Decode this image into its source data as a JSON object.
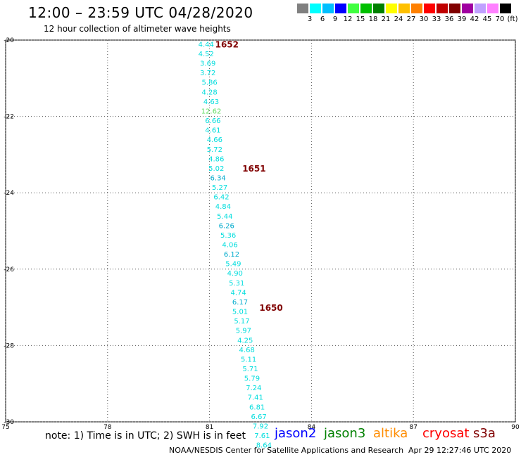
{
  "header": {
    "title": "12:00 – 23:59 UTC 04/28/2020",
    "subtitle": "12 hour collection of altimeter wave heights"
  },
  "colorbar": {
    "colors": [
      "#808080",
      "#00ffff",
      "#00bfff",
      "#0000ff",
      "#40ff40",
      "#00c000",
      "#008000",
      "#ffff00",
      "#ffc000",
      "#ff8000",
      "#ff0000",
      "#c00000",
      "#800000",
      "#a000a0",
      "#c0a0ff",
      "#ff80ff",
      "#000000"
    ],
    "labels": [
      "3",
      "6",
      "9",
      "12",
      "15",
      "18",
      "21",
      "24",
      "27",
      "30",
      "33",
      "36",
      "39",
      "42",
      "45",
      "70",
      "(ft)"
    ]
  },
  "chart_data": {
    "type": "scatter",
    "x_ticks": [
      "75",
      "78",
      "81",
      "84",
      "87",
      "90"
    ],
    "y_ticks": [
      "-20",
      "-22",
      "-24",
      "-26",
      "-28",
      "-30"
    ],
    "xlim": [
      75,
      90
    ],
    "ylim": [
      -30,
      -20
    ],
    "grid": true,
    "series": [
      {
        "color": "#00dddd",
        "points": [
          {
            "lon": 80.9,
            "lat": -20.1,
            "label": "4.44"
          },
          {
            "lon": 80.9,
            "lat": -20.35,
            "label": "4.52"
          },
          {
            "lon": 80.95,
            "lat": -20.6,
            "label": "3.69"
          },
          {
            "lon": 80.95,
            "lat": -20.85,
            "label": "3.72"
          },
          {
            "lon": 81.0,
            "lat": -21.1,
            "label": "5.86"
          },
          {
            "lon": 81.0,
            "lat": -21.35,
            "label": "4.28"
          },
          {
            "lon": 81.05,
            "lat": -21.6,
            "label": "4.63"
          },
          {
            "lon": 81.05,
            "lat": -21.85,
            "label": "12.62",
            "color": "#66dd66"
          },
          {
            "lon": 81.1,
            "lat": -22.1,
            "label": "6.66"
          },
          {
            "lon": 81.1,
            "lat": -22.35,
            "label": "4.61"
          },
          {
            "lon": 81.15,
            "lat": -22.6,
            "label": "4.66"
          },
          {
            "lon": 81.15,
            "lat": -22.85,
            "label": "5.72"
          },
          {
            "lon": 81.2,
            "lat": -23.1,
            "label": "4.86"
          },
          {
            "lon": 81.2,
            "lat": -23.35,
            "label": "5.02"
          },
          {
            "lon": 81.25,
            "lat": -23.6,
            "label": "6.34",
            "color": "#00aacc"
          },
          {
            "lon": 81.3,
            "lat": -23.85,
            "label": "5.27"
          },
          {
            "lon": 81.35,
            "lat": -24.1,
            "label": "6.42"
          },
          {
            "lon": 81.4,
            "lat": -24.35,
            "label": "4.84"
          },
          {
            "lon": 81.45,
            "lat": -24.6,
            "label": "5.44"
          },
          {
            "lon": 81.5,
            "lat": -24.85,
            "label": "6.26",
            "color": "#00aacc"
          },
          {
            "lon": 81.55,
            "lat": -25.1,
            "label": "5.36"
          },
          {
            "lon": 81.6,
            "lat": -25.35,
            "label": "4.06"
          },
          {
            "lon": 81.65,
            "lat": -25.6,
            "label": "6.12",
            "color": "#00aacc"
          },
          {
            "lon": 81.7,
            "lat": -25.85,
            "label": "5.49"
          },
          {
            "lon": 81.75,
            "lat": -26.1,
            "label": "4.90"
          },
          {
            "lon": 81.8,
            "lat": -26.35,
            "label": "5.31"
          },
          {
            "lon": 81.85,
            "lat": -26.6,
            "label": "4.74"
          },
          {
            "lon": 81.9,
            "lat": -26.85,
            "label": "6.17",
            "color": "#00aacc"
          },
          {
            "lon": 81.9,
            "lat": -27.1,
            "label": "5.01"
          },
          {
            "lon": 81.95,
            "lat": -27.35,
            "label": "5.17"
          },
          {
            "lon": 82.0,
            "lat": -27.6,
            "label": "5.97"
          },
          {
            "lon": 82.05,
            "lat": -27.85,
            "label": "4.25"
          },
          {
            "lon": 82.1,
            "lat": -28.1,
            "label": "4.68"
          },
          {
            "lon": 82.15,
            "lat": -28.35,
            "label": "5.11"
          },
          {
            "lon": 82.2,
            "lat": -28.6,
            "label": "5.71"
          },
          {
            "lon": 82.25,
            "lat": -28.85,
            "label": "5.79"
          },
          {
            "lon": 82.3,
            "lat": -29.1,
            "label": "7.24"
          },
          {
            "lon": 82.35,
            "lat": -29.35,
            "label": "7.41"
          },
          {
            "lon": 82.4,
            "lat": -29.6,
            "label": "6.81"
          },
          {
            "lon": 82.45,
            "lat": -29.85,
            "label": "6.67"
          },
          {
            "lon": 82.5,
            "lat": -30.1,
            "label": "7.92"
          },
          {
            "lon": 82.55,
            "lat": -30.35,
            "label": "7.61"
          },
          {
            "lon": 82.6,
            "lat": -30.6,
            "label": "8.64"
          }
        ]
      }
    ],
    "annotations": [
      {
        "label": "1652",
        "lon": 81.0,
        "lat": -20.1,
        "color": "#800000"
      },
      {
        "label": "1651",
        "lon": 81.8,
        "lat": -23.35,
        "color": "#800000"
      },
      {
        "label": "1650",
        "lon": 82.3,
        "lat": -27.0,
        "color": "#800000"
      }
    ]
  },
  "footer": {
    "note": "note:  1) Time is in UTC;  2) SWH is in feet",
    "satellites": [
      {
        "name": "jason2",
        "color": "#0000ff"
      },
      {
        "name": "jason3",
        "color": "#008000"
      },
      {
        "name": "altika",
        "color": "#ff8c00"
      },
      {
        "name": "cryosat",
        "color": "#ff0000"
      },
      {
        "name": "s3a",
        "color": "#800000"
      }
    ],
    "credit": "NOAA/NESDIS Center for Satellite Applications and Research",
    "timestamp": "Apr 29 12:27:46 UTC 2020"
  }
}
